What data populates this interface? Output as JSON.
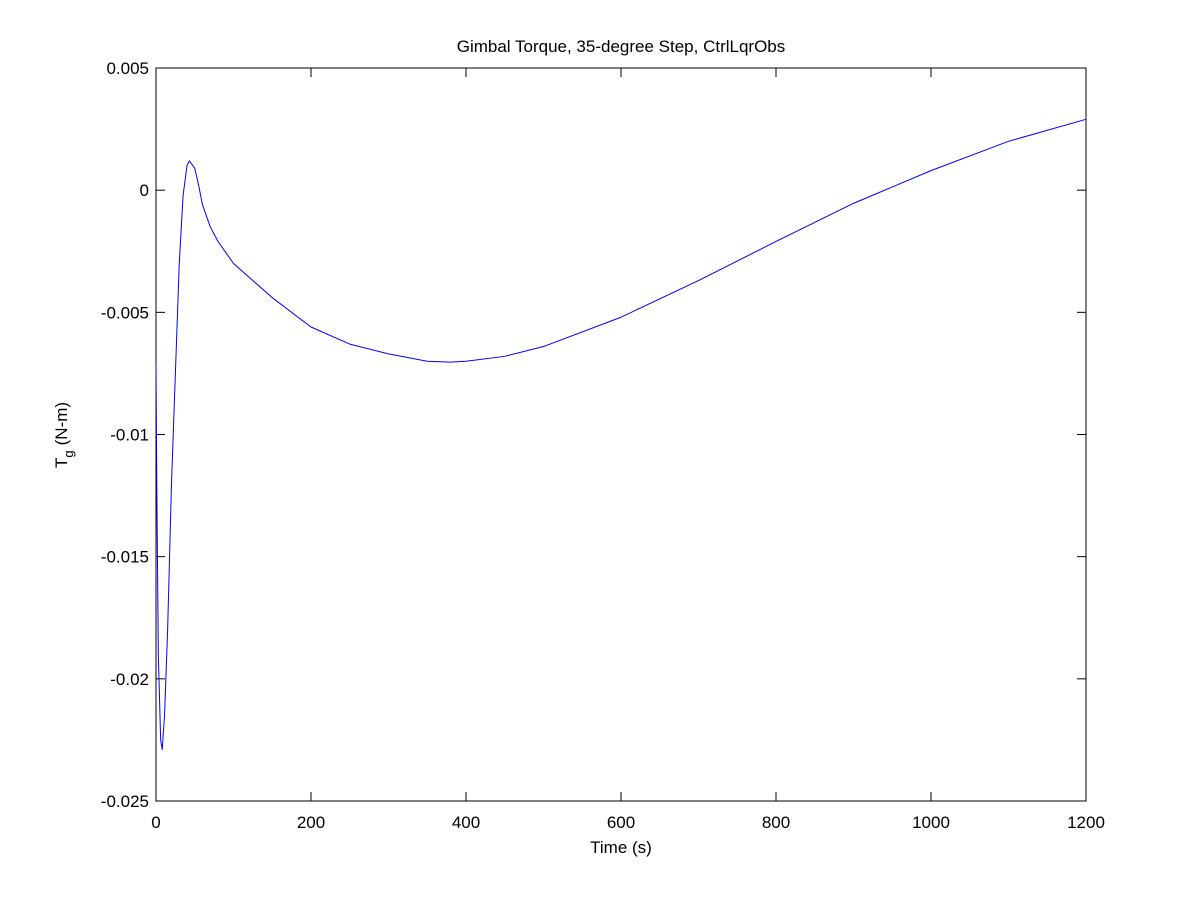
{
  "chart_data": {
    "type": "line",
    "title": "Gimbal Torque, 35-degree Step, CtrlLqrObs",
    "xlabel": "Time (s)",
    "ylabel": "T",
    "ylabel_sub": "g",
    "ylabel_rest": "(N-m)",
    "x": [
      0,
      1,
      3,
      6,
      8,
      11,
      15,
      20,
      25,
      30,
      35,
      40,
      43,
      50,
      55,
      60,
      70,
      80,
      100,
      150,
      200,
      250,
      300,
      350,
      380,
      400,
      450,
      500,
      600,
      700,
      800,
      900,
      1000,
      1100,
      1200
    ],
    "series": [
      {
        "name": "Tg",
        "color": "#0000ff",
        "values": [
          -0.0071,
          -0.012,
          -0.019,
          -0.0225,
          -0.0229,
          -0.0215,
          -0.018,
          -0.012,
          -0.0075,
          -0.003,
          -0.0002,
          0.001,
          0.0012,
          0.0009,
          0.0002,
          -0.0006,
          -0.0015,
          -0.0021,
          -0.003,
          -0.0044,
          -0.0056,
          -0.0063,
          -0.0067,
          -0.007,
          -0.00704,
          -0.007,
          -0.0068,
          -0.0064,
          -0.0052,
          -0.0037,
          -0.0021,
          -0.00054,
          0.0008,
          0.002,
          0.0029
        ]
      }
    ],
    "xlim": [
      0,
      1200
    ],
    "xticks": [
      0,
      200,
      400,
      600,
      800,
      1000,
      1200
    ],
    "ylim": [
      -0.025,
      0.005
    ],
    "yticks": [
      -0.025,
      -0.02,
      -0.015,
      -0.01,
      -0.005,
      0,
      0.005
    ],
    "grid": false
  }
}
